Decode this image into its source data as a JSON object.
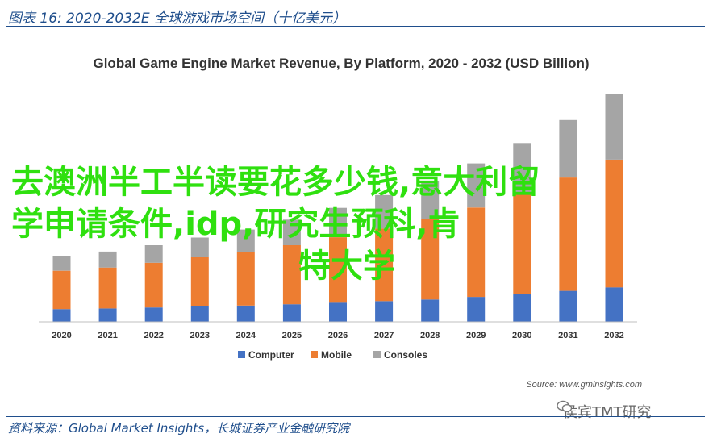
{
  "figure": {
    "title": "图表 16:  2020-2032E 全球游戏市场空间（十亿美元）",
    "source_note": "资料来源：Global Market Insights，长城证券产业金融研究院"
  },
  "chart_data": {
    "type": "bar",
    "stacked": true,
    "title": "Global Game Engine Market Revenue, By Platform, 2020 - 2032 (USD Billion)",
    "xlabel": "",
    "ylabel": "",
    "categories": [
      "2020",
      "2021",
      "2022",
      "2023",
      "2024",
      "2025",
      "2026",
      "2027",
      "2028",
      "2029",
      "2030",
      "2031",
      "2032"
    ],
    "series": [
      {
        "name": "Computer",
        "color": "#4472c4",
        "values": [
          0.4,
          0.42,
          0.45,
          0.48,
          0.51,
          0.55,
          0.6,
          0.65,
          0.7,
          0.78,
          0.87,
          0.97,
          1.08
        ]
      },
      {
        "name": "Mobile",
        "color": "#ed7d31",
        "values": [
          1.2,
          1.28,
          1.4,
          1.54,
          1.68,
          1.85,
          2.05,
          2.27,
          2.52,
          2.8,
          3.15,
          3.55,
          4.0
        ]
      },
      {
        "name": "Consoles",
        "color": "#a5a5a5",
        "values": [
          0.45,
          0.5,
          0.55,
          0.62,
          0.7,
          0.8,
          0.92,
          1.05,
          1.2,
          1.38,
          1.58,
          1.8,
          2.05
        ]
      }
    ],
    "ylim": [
      0,
      7.3
    ],
    "grid": false,
    "legend_position": "bottom",
    "source": "Source: www.gminsights.com"
  },
  "overlay": {
    "line1": "去澳洲半工半读要花多少钱,意大利留",
    "line2": "学申请条件,idp,研究生预科,肯",
    "line3": "特大学"
  },
  "watermark": {
    "text": "侯宾TMT研究",
    "icon": "wechat-icon"
  }
}
